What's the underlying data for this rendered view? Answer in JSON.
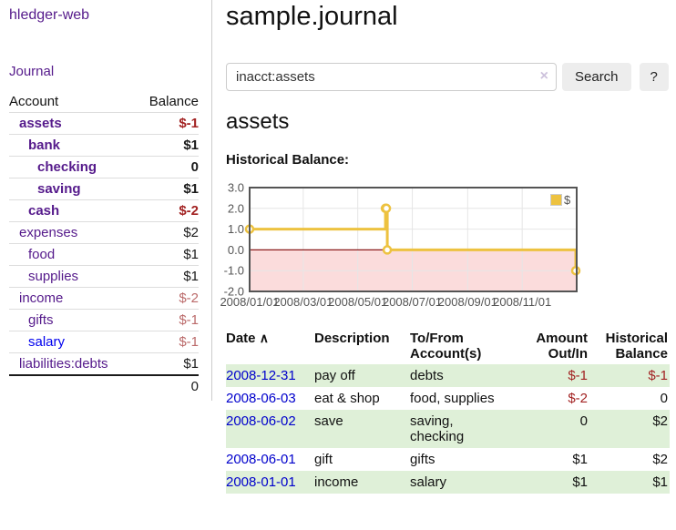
{
  "app": {
    "brand": "hledger-web"
  },
  "sidebar": {
    "journal_label": "Journal",
    "table": {
      "account_header": "Account",
      "balance_header": "Balance",
      "accounts": [
        {
          "name": "assets",
          "balance": "$-1"
        },
        {
          "name": "bank",
          "balance": "$1"
        },
        {
          "name": "checking",
          "balance": "0"
        },
        {
          "name": "saving",
          "balance": "$1"
        },
        {
          "name": "cash",
          "balance": "$-2"
        },
        {
          "name": "expenses",
          "balance": "$2"
        },
        {
          "name": "food",
          "balance": "$1"
        },
        {
          "name": "supplies",
          "balance": "$1"
        },
        {
          "name": "income",
          "balance": "$-2"
        },
        {
          "name": "gifts",
          "balance": "$-1"
        },
        {
          "name": "salary",
          "balance": "$-1"
        },
        {
          "name": "liabilities:debts",
          "balance": "$1"
        }
      ],
      "total": "0"
    }
  },
  "header": {
    "title": "sample.journal"
  },
  "search": {
    "value": "inacct:assets",
    "clear_icon": "×",
    "button_label": "Search",
    "help_label": "?"
  },
  "account_page": {
    "heading": "assets",
    "chart_label": "Historical Balance:"
  },
  "chart_data": {
    "type": "line",
    "step": true,
    "legend": "$",
    "series": [
      {
        "name": "$",
        "color": "#edc240",
        "points": [
          [
            "2008-01-01",
            1
          ],
          [
            "2008-06-01",
            2
          ],
          [
            "2008-06-02",
            2
          ],
          [
            "2008-06-03",
            0
          ],
          [
            "2008-12-31",
            -1
          ]
        ]
      }
    ],
    "x_ticks": [
      "2008/01/01",
      "2008/03/01",
      "2008/05/01",
      "2008/07/01",
      "2008/09/01",
      "2008/11/01"
    ],
    "y_ticks": [
      3.0,
      2.0,
      1.0,
      0.0,
      -1.0,
      -2.0
    ],
    "xlim": [
      "2008-01-01",
      "2009-01-01"
    ],
    "ylim": [
      -2,
      3
    ],
    "grid": true,
    "legend_position": "top-right",
    "negative_region_color": "#fbdcdc",
    "zero_line_color": "#8b1a1a",
    "grid_color": "#e6e6e6",
    "border_color": "#545454"
  },
  "register": {
    "headers": {
      "date": "Date",
      "sort_icon": "∧",
      "description": "Description",
      "accounts": "To/From Account(s)",
      "amount": "Amount Out/In",
      "balance": "Historical Balance"
    },
    "rows": [
      {
        "date": "2008-12-31",
        "description": "pay off",
        "accounts": "debts",
        "amount": "$-1",
        "balance": "$-1"
      },
      {
        "date": "2008-06-03",
        "description": "eat & shop",
        "accounts": "food, supplies",
        "amount": "$-2",
        "balance": "0"
      },
      {
        "date": "2008-06-02",
        "description": "save",
        "accounts": "saving,\nchecking",
        "amount": "0",
        "balance": "$2"
      },
      {
        "date": "2008-06-01",
        "description": "gift",
        "accounts": "gifts",
        "amount": "$1",
        "balance": "$2"
      },
      {
        "date": "2008-01-01",
        "description": "income",
        "accounts": "salary",
        "amount": "$1",
        "balance": "$1"
      }
    ]
  }
}
